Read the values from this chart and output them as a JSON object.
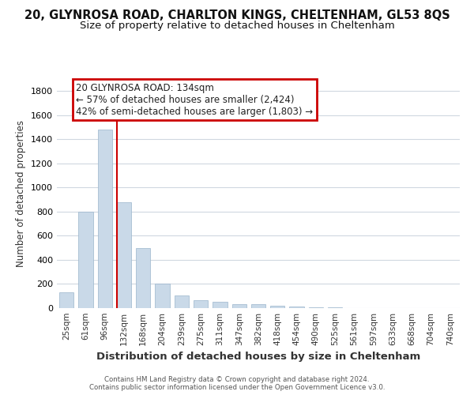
{
  "title": "20, GLYNROSA ROAD, CHARLTON KINGS, CHELTENHAM, GL53 8QS",
  "subtitle": "Size of property relative to detached houses in Cheltenham",
  "xlabel": "Distribution of detached houses by size in Cheltenham",
  "ylabel": "Number of detached properties",
  "categories": [
    "25sqm",
    "61sqm",
    "96sqm",
    "132sqm",
    "168sqm",
    "204sqm",
    "239sqm",
    "275sqm",
    "311sqm",
    "347sqm",
    "382sqm",
    "418sqm",
    "454sqm",
    "490sqm",
    "525sqm",
    "561sqm",
    "597sqm",
    "633sqm",
    "668sqm",
    "704sqm",
    "740sqm"
  ],
  "values": [
    130,
    800,
    1480,
    880,
    500,
    200,
    105,
    65,
    50,
    35,
    30,
    20,
    10,
    5,
    4,
    3,
    2,
    2,
    1,
    1,
    1
  ],
  "bar_color": "#c9d9e8",
  "bar_edge_color": "#9ab5cc",
  "annotation_box_text": "20 GLYNROSA ROAD: 134sqm\n← 57% of detached houses are smaller (2,424)\n42% of semi-detached houses are larger (1,803) →",
  "annotation_box_edge_color": "#cc0000",
  "red_line_x": 3,
  "ylim": [
    0,
    1900
  ],
  "yticks": [
    0,
    200,
    400,
    600,
    800,
    1000,
    1200,
    1400,
    1600,
    1800
  ],
  "footer_line1": "Contains HM Land Registry data © Crown copyright and database right 2024.",
  "footer_line2": "Contains public sector information licensed under the Open Government Licence v3.0.",
  "background_color": "#ffffff",
  "grid_color": "#d0d8e0",
  "title_fontsize": 10.5,
  "subtitle_fontsize": 9.5,
  "ylabel_fontsize": 8.5,
  "xlabel_fontsize": 9.5
}
